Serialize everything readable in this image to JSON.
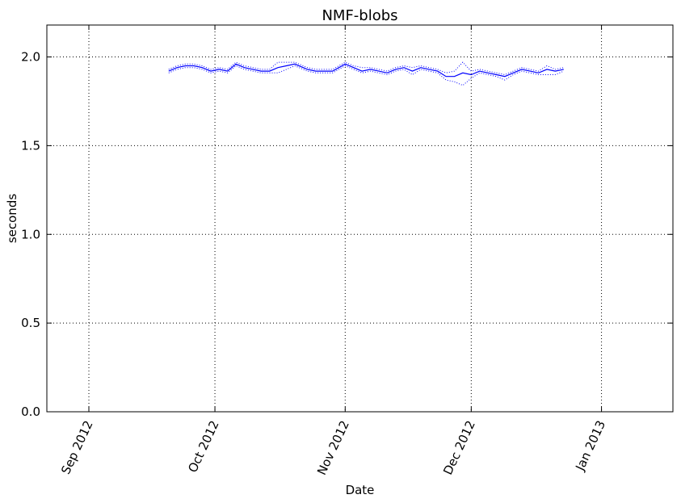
{
  "chart_data": {
    "type": "line",
    "title": "NMF-blobs",
    "xlabel": "Date",
    "ylabel": "seconds",
    "x_ticks": [
      "Sep 2012",
      "Oct 2012",
      "Nov 2012",
      "Dec 2012",
      "Jan 2013"
    ],
    "x_tick_dates": [
      "2012-09-01",
      "2012-10-01",
      "2012-11-01",
      "2012-12-01",
      "2013-01-01"
    ],
    "xlim": [
      "2012-08-22",
      "2013-01-18"
    ],
    "y_ticks": [
      0.0,
      0.5,
      1.0,
      1.5,
      2.0
    ],
    "y_tick_labels": [
      "0.0",
      "0.5",
      "1.0",
      "1.5",
      "2.0"
    ],
    "ylim": [
      0.0,
      2.18
    ],
    "grid": true,
    "grid_style": "dotted",
    "colors": {
      "series": "#0000ff",
      "grid": "#000000",
      "frame": "#000000"
    },
    "series": [
      {
        "style": "solid",
        "x": [
          "2012-09-20",
          "2012-09-22",
          "2012-09-24",
          "2012-09-26",
          "2012-09-28",
          "2012-09-30",
          "2012-10-02",
          "2012-10-04",
          "2012-10-06",
          "2012-10-08",
          "2012-10-10",
          "2012-10-12",
          "2012-10-14",
          "2012-10-16",
          "2012-10-18",
          "2012-10-20",
          "2012-10-23",
          "2012-10-25",
          "2012-10-27",
          "2012-10-29",
          "2012-11-01",
          "2012-11-03",
          "2012-11-05",
          "2012-11-07",
          "2012-11-09",
          "2012-11-11",
          "2012-11-13",
          "2012-11-15",
          "2012-11-17",
          "2012-11-19",
          "2012-11-21",
          "2012-11-23",
          "2012-11-25",
          "2012-11-27",
          "2012-11-29",
          "2012-12-01",
          "2012-12-03",
          "2012-12-05",
          "2012-12-07",
          "2012-12-09",
          "2012-12-11",
          "2012-12-13",
          "2012-12-15",
          "2012-12-17",
          "2012-12-19",
          "2012-12-21",
          "2012-12-23"
        ],
        "values": [
          1.92,
          1.94,
          1.95,
          1.95,
          1.94,
          1.92,
          1.93,
          1.92,
          1.96,
          1.94,
          1.93,
          1.92,
          1.92,
          1.94,
          1.95,
          1.96,
          1.93,
          1.92,
          1.92,
          1.92,
          1.96,
          1.94,
          1.92,
          1.93,
          1.92,
          1.91,
          1.93,
          1.94,
          1.92,
          1.94,
          1.93,
          1.92,
          1.89,
          1.89,
          1.91,
          1.9,
          1.92,
          1.91,
          1.9,
          1.89,
          1.91,
          1.93,
          1.92,
          1.91,
          1.93,
          1.92,
          1.93
        ]
      },
      {
        "style": "dotted",
        "x": [
          "2012-09-20",
          "2012-09-22",
          "2012-09-24",
          "2012-09-26",
          "2012-09-28",
          "2012-09-30",
          "2012-10-02",
          "2012-10-04",
          "2012-10-06",
          "2012-10-08",
          "2012-10-10",
          "2012-10-12",
          "2012-10-14",
          "2012-10-16",
          "2012-10-18",
          "2012-10-20",
          "2012-10-23",
          "2012-10-25",
          "2012-10-27",
          "2012-10-29",
          "2012-11-01",
          "2012-11-03",
          "2012-11-05",
          "2012-11-07",
          "2012-11-09",
          "2012-11-11",
          "2012-11-13",
          "2012-11-15",
          "2012-11-17",
          "2012-11-19",
          "2012-11-21",
          "2012-11-23",
          "2012-11-25",
          "2012-11-27",
          "2012-11-29",
          "2012-12-01",
          "2012-12-03",
          "2012-12-05",
          "2012-12-07",
          "2012-12-09",
          "2012-12-11",
          "2012-12-13",
          "2012-12-15",
          "2012-12-17",
          "2012-12-19",
          "2012-12-21",
          "2012-12-23"
        ],
        "values": [
          1.93,
          1.95,
          1.96,
          1.96,
          1.95,
          1.93,
          1.94,
          1.93,
          1.97,
          1.95,
          1.94,
          1.93,
          1.93,
          1.97,
          1.97,
          1.97,
          1.94,
          1.93,
          1.93,
          1.93,
          1.97,
          1.95,
          1.94,
          1.94,
          1.93,
          1.92,
          1.94,
          1.95,
          1.94,
          1.95,
          1.94,
          1.93,
          1.91,
          1.92,
          1.97,
          1.92,
          1.93,
          1.92,
          1.91,
          1.9,
          1.92,
          1.94,
          1.93,
          1.92,
          1.95,
          1.93,
          1.94
        ]
      },
      {
        "style": "dotted",
        "x": [
          "2012-09-20",
          "2012-09-22",
          "2012-09-24",
          "2012-09-26",
          "2012-09-28",
          "2012-09-30",
          "2012-10-02",
          "2012-10-04",
          "2012-10-06",
          "2012-10-08",
          "2012-10-10",
          "2012-10-12",
          "2012-10-14",
          "2012-10-16",
          "2012-10-18",
          "2012-10-20",
          "2012-10-23",
          "2012-10-25",
          "2012-10-27",
          "2012-10-29",
          "2012-11-01",
          "2012-11-03",
          "2012-11-05",
          "2012-11-07",
          "2012-11-09",
          "2012-11-11",
          "2012-11-13",
          "2012-11-15",
          "2012-11-17",
          "2012-11-19",
          "2012-11-21",
          "2012-11-23",
          "2012-11-25",
          "2012-11-27",
          "2012-11-29",
          "2012-12-01",
          "2012-12-03",
          "2012-12-05",
          "2012-12-07",
          "2012-12-09",
          "2012-12-11",
          "2012-12-13",
          "2012-12-15",
          "2012-12-17",
          "2012-12-19",
          "2012-12-21",
          "2012-12-23"
        ],
        "values": [
          1.91,
          1.93,
          1.94,
          1.94,
          1.93,
          1.91,
          1.92,
          1.91,
          1.95,
          1.93,
          1.92,
          1.91,
          1.91,
          1.91,
          1.93,
          1.95,
          1.92,
          1.91,
          1.91,
          1.91,
          1.95,
          1.93,
          1.91,
          1.92,
          1.91,
          1.9,
          1.92,
          1.93,
          1.9,
          1.93,
          1.92,
          1.91,
          1.87,
          1.86,
          1.84,
          1.88,
          1.91,
          1.9,
          1.89,
          1.87,
          1.9,
          1.92,
          1.91,
          1.9,
          1.9,
          1.9,
          1.92
        ]
      }
    ]
  }
}
